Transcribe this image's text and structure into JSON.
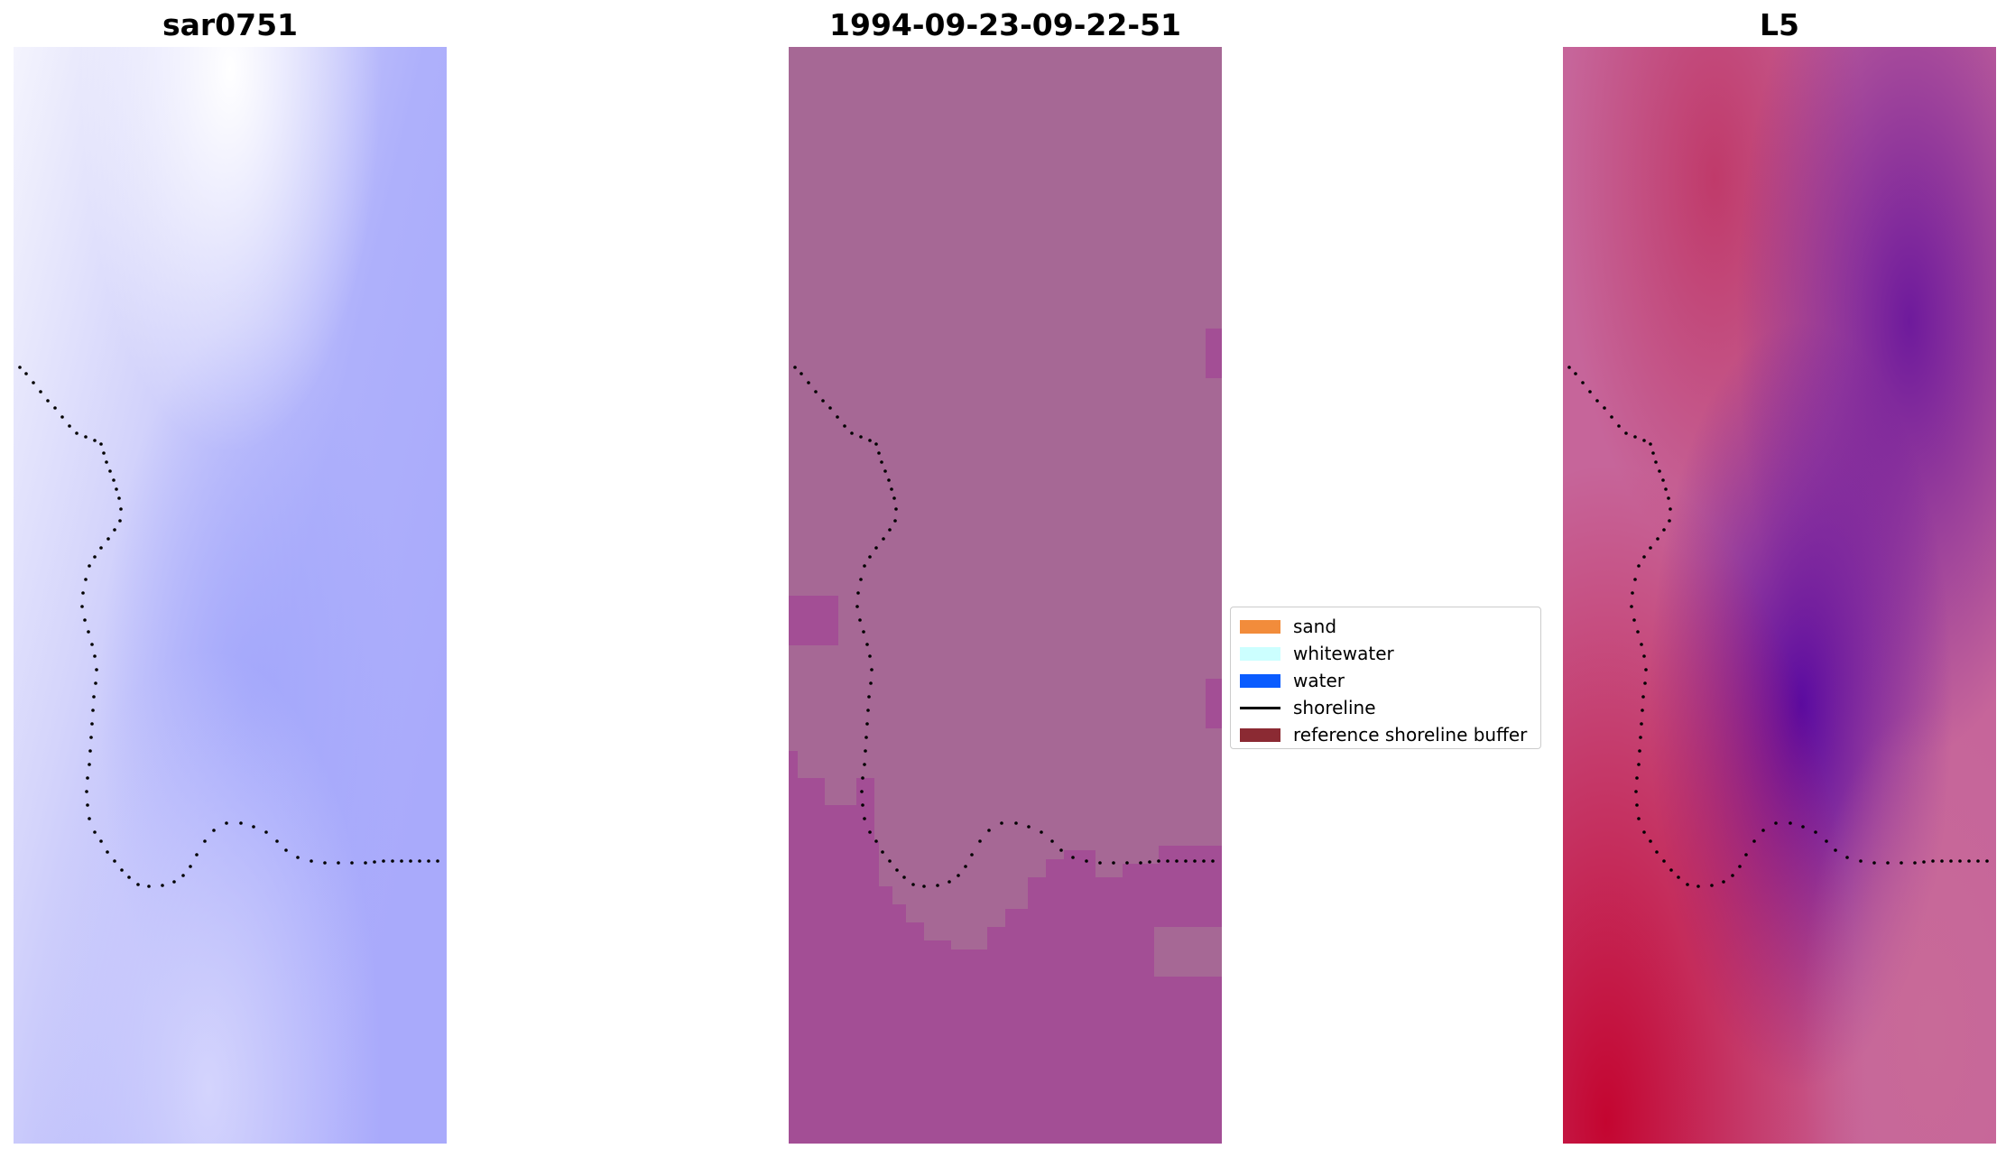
{
  "panels": [
    {
      "title": "sar0751"
    },
    {
      "title": "1994-09-23-09-22-51"
    },
    {
      "title": "L5"
    }
  ],
  "legend": {
    "items": [
      {
        "label": "sand",
        "color": "#f28c3b",
        "kind": "patch"
      },
      {
        "label": "whitewater",
        "color": "#ccffff",
        "kind": "patch"
      },
      {
        "label": "water",
        "color": "#0a5cff",
        "kind": "patch"
      },
      {
        "label": "shoreline",
        "color": "#000000",
        "kind": "line"
      },
      {
        "label": "reference shoreline buffer",
        "color": "#8b2a33",
        "kind": "patch"
      }
    ]
  },
  "colors": {
    "sar_light": "#eeeefc",
    "sar_mid": "#b9b9fa",
    "sar_dark": "#a3a6fb",
    "class_land": "#a66895",
    "class_region": "#a34e95",
    "l5_red": "#c0063b",
    "l5_pink": "#c86090",
    "l5_purple": "#6b149b"
  },
  "icons": {
    "shoreline_marker": "black-dot"
  }
}
